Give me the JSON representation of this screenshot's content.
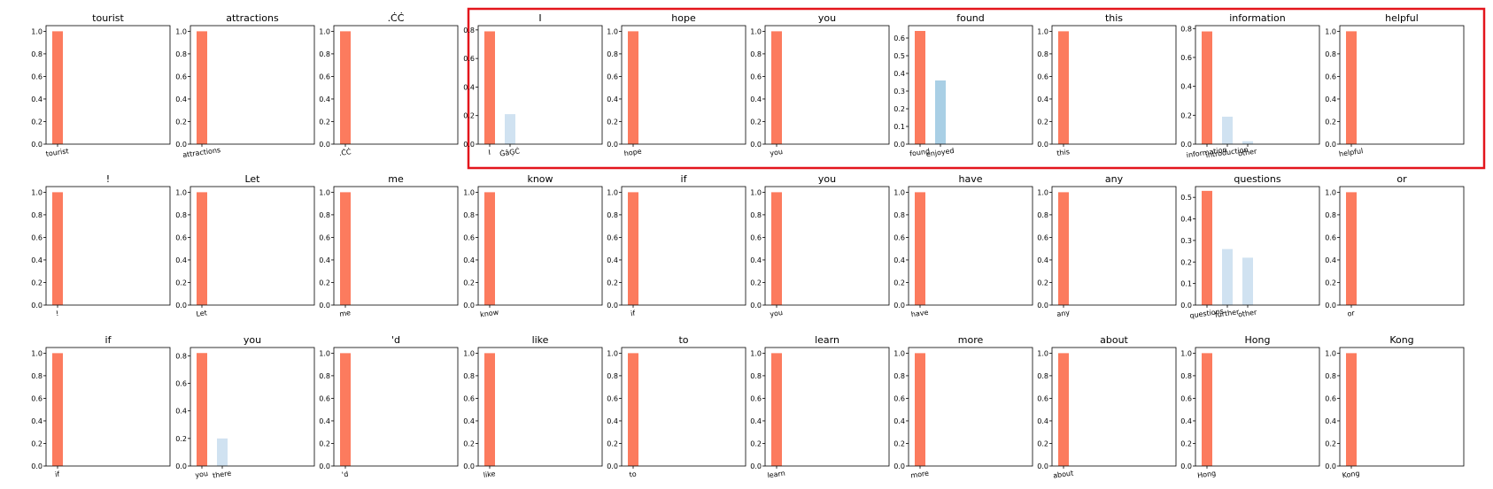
{
  "figure": {
    "highlight_color": "#e3151c",
    "bar_colors": {
      "primary": "#fc7b5e",
      "secondary_dark": "#a9cfe5",
      "secondary_light": "#d0e2f1"
    }
  },
  "chart_data": [
    {
      "type": "bar",
      "title": "tourist",
      "categories": [
        "tourist"
      ],
      "values": [
        1.0
      ],
      "ylim": [
        0,
        1.05
      ],
      "yticks": [
        "0.0",
        "0.2",
        "0.4",
        "0.6",
        "0.8",
        "1.0"
      ]
    },
    {
      "type": "bar",
      "title": "attractions",
      "categories": [
        "attractions"
      ],
      "values": [
        1.0
      ],
      "ylim": [
        0,
        1.05
      ],
      "yticks": [
        "0.0",
        "0.2",
        "0.4",
        "0.6",
        "0.8",
        "1.0"
      ]
    },
    {
      "type": "bar",
      "title": ".ĊĊ",
      "categories": ".ĊĊ",
      "values": [
        1.0
      ],
      "ylim": [
        0,
        1.05
      ],
      "yticks": [
        "0.0",
        "0.2",
        "0.4",
        "0.6",
        "0.8",
        "1.0"
      ]
    },
    {
      "type": "bar",
      "title": "I",
      "categories": [
        "I",
        "ĠâĢĊ"
      ],
      "values": [
        0.79,
        0.21
      ],
      "ylim": [
        0,
        0.83
      ],
      "yticks": [
        "0.0",
        "0.2",
        "0.4",
        "0.6",
        "0.8"
      ]
    },
    {
      "type": "bar",
      "title": "hope",
      "categories": [
        "hope"
      ],
      "values": [
        1.0
      ],
      "ylim": [
        0,
        1.05
      ],
      "yticks": [
        "0.0",
        "0.2",
        "0.4",
        "0.6",
        "0.8",
        "1.0"
      ]
    },
    {
      "type": "bar",
      "title": "you",
      "categories": [
        "you"
      ],
      "values": [
        1.0
      ],
      "ylim": [
        0,
        1.05
      ],
      "yticks": [
        "0.0",
        "0.2",
        "0.4",
        "0.6",
        "0.8",
        "1.0"
      ]
    },
    {
      "type": "bar",
      "title": "found",
      "categories": [
        "found",
        "enjoyed"
      ],
      "values": [
        0.64,
        0.36
      ],
      "ylim": [
        0,
        0.67
      ],
      "yticks": [
        "0.0",
        "0.1",
        "0.2",
        "0.3",
        "0.4",
        "0.5",
        "0.6"
      ]
    },
    {
      "type": "bar",
      "title": "this",
      "categories": [
        "this"
      ],
      "values": [
        1.0
      ],
      "ylim": [
        0,
        1.05
      ],
      "yticks": [
        "0.0",
        "0.2",
        "0.4",
        "0.6",
        "0.8",
        "1.0"
      ]
    },
    {
      "type": "bar",
      "title": "information",
      "categories": [
        "information",
        "introduction",
        "other"
      ],
      "values": [
        0.78,
        0.19,
        0.02
      ],
      "ylim": [
        0,
        0.82
      ],
      "yticks": [
        "0.0",
        "0.2",
        "0.4",
        "0.6",
        "0.8"
      ]
    },
    {
      "type": "bar",
      "title": "helpful",
      "categories": [
        "helpful"
      ],
      "values": [
        1.0
      ],
      "ylim": [
        0,
        1.05
      ],
      "yticks": [
        "0.0",
        "0.2",
        "0.4",
        "0.6",
        "0.8",
        "1.0"
      ]
    },
    {
      "type": "bar",
      "title": "!",
      "categories": [
        "!"
      ],
      "values": [
        1.0
      ],
      "ylim": [
        0,
        1.05
      ],
      "yticks": [
        "0.0",
        "0.2",
        "0.4",
        "0.6",
        "0.8",
        "1.0"
      ]
    },
    {
      "type": "bar",
      "title": "Let",
      "categories": [
        "Let"
      ],
      "values": [
        1.0
      ],
      "ylim": [
        0,
        1.05
      ],
      "yticks": [
        "0.0",
        "0.2",
        "0.4",
        "0.6",
        "0.8",
        "1.0"
      ]
    },
    {
      "type": "bar",
      "title": "me",
      "categories": [
        "me"
      ],
      "values": [
        1.0
      ],
      "ylim": [
        0,
        1.05
      ],
      "yticks": [
        "0.0",
        "0.2",
        "0.4",
        "0.6",
        "0.8",
        "1.0"
      ]
    },
    {
      "type": "bar",
      "title": "know",
      "categories": [
        "know"
      ],
      "values": [
        1.0
      ],
      "ylim": [
        0,
        1.05
      ],
      "yticks": [
        "0.0",
        "0.2",
        "0.4",
        "0.6",
        "0.8",
        "1.0"
      ]
    },
    {
      "type": "bar",
      "title": "if",
      "categories": [
        "if"
      ],
      "values": [
        1.0
      ],
      "ylim": [
        0,
        1.05
      ],
      "yticks": [
        "0.0",
        "0.2",
        "0.4",
        "0.6",
        "0.8",
        "1.0"
      ]
    },
    {
      "type": "bar",
      "title": "you",
      "categories": [
        "you"
      ],
      "values": [
        1.0
      ],
      "ylim": [
        0,
        1.05
      ],
      "yticks": [
        "0.0",
        "0.2",
        "0.4",
        "0.6",
        "0.8",
        "1.0"
      ]
    },
    {
      "type": "bar",
      "title": "have",
      "categories": [
        "have"
      ],
      "values": [
        1.0
      ],
      "ylim": [
        0,
        1.05
      ],
      "yticks": [
        "0.0",
        "0.2",
        "0.4",
        "0.6",
        "0.8",
        "1.0"
      ]
    },
    {
      "type": "bar",
      "title": "any",
      "categories": [
        "any"
      ],
      "values": [
        1.0
      ],
      "ylim": [
        0,
        1.05
      ],
      "yticks": [
        "0.0",
        "0.2",
        "0.4",
        "0.6",
        "0.8",
        "1.0"
      ]
    },
    {
      "type": "bar",
      "title": "questions",
      "categories": [
        "questions",
        "further",
        "other"
      ],
      "values": [
        0.53,
        0.26,
        0.22
      ],
      "ylim": [
        0,
        0.55
      ],
      "yticks": [
        "0.0",
        "0.1",
        "0.2",
        "0.3",
        "0.4",
        "0.5"
      ]
    },
    {
      "type": "bar",
      "title": "or",
      "categories": [
        "or"
      ],
      "values": [
        1.0
      ],
      "ylim": [
        0,
        1.05
      ],
      "yticks": [
        "0.0",
        "0.2",
        "0.4",
        "0.6",
        "0.8",
        "1.0"
      ]
    },
    {
      "type": "bar",
      "title": "if",
      "categories": [
        "if"
      ],
      "values": [
        1.0
      ],
      "ylim": [
        0,
        1.05
      ],
      "yticks": [
        "0.0",
        "0.2",
        "0.4",
        "0.6",
        "0.8",
        "1.0"
      ]
    },
    {
      "type": "bar",
      "title": "you",
      "categories": [
        "you",
        "there"
      ],
      "values": [
        0.82,
        0.2
      ],
      "ylim": [
        0,
        0.86
      ],
      "yticks": [
        "0.0",
        "0.2",
        "0.4",
        "0.6",
        "0.8"
      ]
    },
    {
      "type": "bar",
      "title": "'d",
      "categories": [
        "'d"
      ],
      "values": [
        1.0
      ],
      "ylim": [
        0,
        1.05
      ],
      "yticks": [
        "0.0",
        "0.2",
        "0.4",
        "0.6",
        "0.8",
        "1.0"
      ]
    },
    {
      "type": "bar",
      "title": "like",
      "categories": [
        "like"
      ],
      "values": [
        1.0
      ],
      "ylim": [
        0,
        1.05
      ],
      "yticks": [
        "0.0",
        "0.2",
        "0.4",
        "0.6",
        "0.8",
        "1.0"
      ]
    },
    {
      "type": "bar",
      "title": "to",
      "categories": [
        "to"
      ],
      "values": [
        1.0
      ],
      "ylim": [
        0,
        1.05
      ],
      "yticks": [
        "0.0",
        "0.2",
        "0.4",
        "0.6",
        "0.8",
        "1.0"
      ]
    },
    {
      "type": "bar",
      "title": "learn",
      "categories": [
        "learn"
      ],
      "values": [
        1.0
      ],
      "ylim": [
        0,
        1.05
      ],
      "yticks": [
        "0.0",
        "0.2",
        "0.4",
        "0.6",
        "0.8",
        "1.0"
      ]
    },
    {
      "type": "bar",
      "title": "more",
      "categories": [
        "more"
      ],
      "values": [
        1.0
      ],
      "ylim": [
        0,
        1.05
      ],
      "yticks": [
        "0.0",
        "0.2",
        "0.4",
        "0.6",
        "0.8",
        "1.0"
      ]
    },
    {
      "type": "bar",
      "title": "about",
      "categories": [
        "about"
      ],
      "values": [
        1.0
      ],
      "ylim": [
        0,
        1.05
      ],
      "yticks": [
        "0.0",
        "0.2",
        "0.4",
        "0.6",
        "0.8",
        "1.0"
      ]
    },
    {
      "type": "bar",
      "title": "Hong",
      "categories": [
        "Hong"
      ],
      "values": [
        1.0
      ],
      "ylim": [
        0,
        1.05
      ],
      "yticks": [
        "0.0",
        "0.2",
        "0.4",
        "0.6",
        "0.8",
        "1.0"
      ]
    },
    {
      "type": "bar",
      "title": "Kong",
      "categories": [
        "Kong"
      ],
      "values": [
        1.0
      ],
      "ylim": [
        0,
        1.05
      ],
      "yticks": [
        "0.0",
        "0.2",
        "0.4",
        "0.6",
        "0.8",
        "1.0"
      ]
    }
  ]
}
